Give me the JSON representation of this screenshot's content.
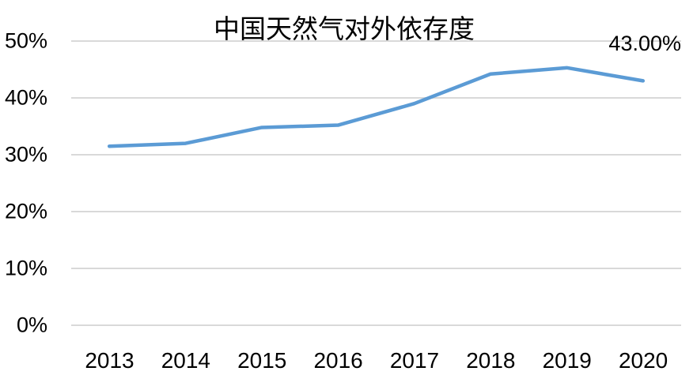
{
  "chart_data": {
    "type": "line",
    "title": "中国天然气对外依存度",
    "categories": [
      "2013",
      "2014",
      "2015",
      "2016",
      "2017",
      "2018",
      "2019",
      "2020"
    ],
    "values": [
      31.5,
      32.0,
      34.8,
      35.2,
      39.0,
      44.2,
      45.3,
      43.0
    ],
    "annotation": "43.00%",
    "annotation_applies_to": "2020",
    "yticks": [
      {
        "label": "0%",
        "value": 0
      },
      {
        "label": "10%",
        "value": 10
      },
      {
        "label": "20%",
        "value": 20
      },
      {
        "label": "30%",
        "value": 30
      },
      {
        "label": "40%",
        "value": 40
      },
      {
        "label": "50%",
        "value": 50
      }
    ],
    "ylim": [
      0,
      50
    ],
    "grid": "horizontal",
    "legend": "none",
    "line_color": "#5B9BD5",
    "gridline_color": "#D9D9D9",
    "text_color": "#000000",
    "background_color": "#FFFFFF"
  }
}
